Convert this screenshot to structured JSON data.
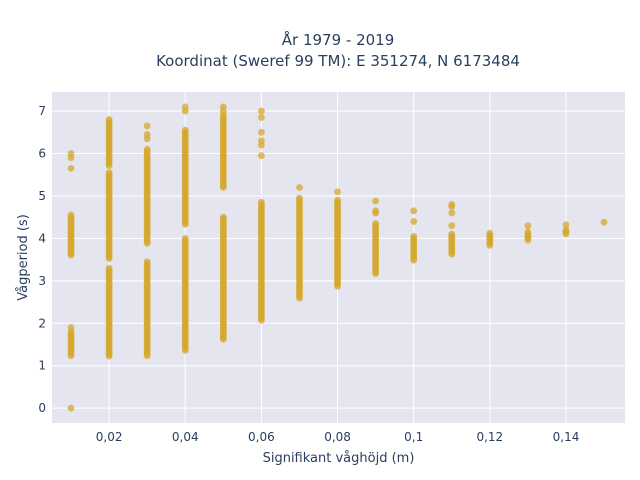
{
  "chart_data": {
    "type": "scatter",
    "title_line1": "År 1979 - 2019",
    "title_line2": "Koordinat (Sweref 99 TM): E 351274, N 6173484",
    "xlabel": "Signifikant våghöjd (m)",
    "ylabel": "Vågperiod (s)",
    "xlim": [
      0.005,
      0.1555
    ],
    "ylim": [
      -0.35,
      7.45
    ],
    "x_ticks": [
      0.02,
      0.04,
      0.06,
      0.08,
      0.1,
      0.12,
      0.14
    ],
    "x_tick_labels": [
      "0,02",
      "0,04",
      "0,06",
      "0,08",
      "0,1",
      "0,12",
      "0,14"
    ],
    "y_ticks": [
      0,
      1,
      2,
      3,
      4,
      5,
      6,
      7
    ],
    "y_tick_labels": [
      "0",
      "1",
      "2",
      "3",
      "4",
      "5",
      "6",
      "7"
    ],
    "grid": true,
    "colors": {
      "marker": "#d4a72c",
      "plot_bg": "#e5e5f0",
      "grid": "#ffffff",
      "text": "#2a3f5f"
    },
    "columns": [
      {
        "x": 0.01,
        "ranges": [
          [
            3.6,
            4.55
          ],
          [
            1.2,
            1.8
          ]
        ],
        "points": [
          0,
          1.9,
          5.65,
          5.9,
          6.0
        ]
      },
      {
        "x": 0.02,
        "ranges": [
          [
            1.2,
            3.3
          ],
          [
            3.5,
            5.55
          ],
          [
            5.7,
            6.8
          ]
        ],
        "points": []
      },
      {
        "x": 0.03,
        "ranges": [
          [
            1.2,
            3.45
          ],
          [
            3.85,
            6.1
          ]
        ],
        "points": [
          6.35,
          6.45,
          6.65
        ]
      },
      {
        "x": 0.04,
        "ranges": [
          [
            1.35,
            4.0
          ],
          [
            4.3,
            6.55
          ]
        ],
        "points": [
          7.0,
          7.1
        ]
      },
      {
        "x": 0.05,
        "ranges": [
          [
            1.6,
            4.5
          ],
          [
            5.2,
            6.9
          ]
        ],
        "points": [
          7.0,
          7.1
        ]
      },
      {
        "x": 0.06,
        "ranges": [
          [
            2.05,
            4.85
          ]
        ],
        "points": [
          5.95,
          6.2,
          6.3,
          6.5,
          6.85,
          7.0
        ]
      },
      {
        "x": 0.07,
        "ranges": [
          [
            2.55,
            4.95
          ]
        ],
        "points": [
          5.2
        ]
      },
      {
        "x": 0.08,
        "ranges": [
          [
            2.85,
            4.9
          ]
        ],
        "points": [
          5.1
        ]
      },
      {
        "x": 0.09,
        "ranges": [
          [
            3.15,
            4.35
          ]
        ],
        "points": [
          4.6,
          4.65,
          4.88
        ]
      },
      {
        "x": 0.1,
        "ranges": [
          [
            3.45,
            4.05
          ]
        ],
        "points": [
          4.4,
          4.65
        ]
      },
      {
        "x": 0.11,
        "ranges": [
          [
            3.6,
            4.1
          ]
        ],
        "points": [
          4.3,
          4.6,
          4.75,
          4.8
        ]
      },
      {
        "x": 0.12,
        "ranges": [
          [
            3.82,
            4.12
          ]
        ],
        "points": []
      },
      {
        "x": 0.13,
        "ranges": [
          [
            3.95,
            4.15
          ]
        ],
        "points": [
          4.3
        ]
      },
      {
        "x": 0.14,
        "ranges": [
          [
            4.1,
            4.2
          ]
        ],
        "points": [
          4.32
        ]
      },
      {
        "x": 0.15,
        "ranges": [],
        "points": [
          4.38
        ]
      }
    ]
  }
}
